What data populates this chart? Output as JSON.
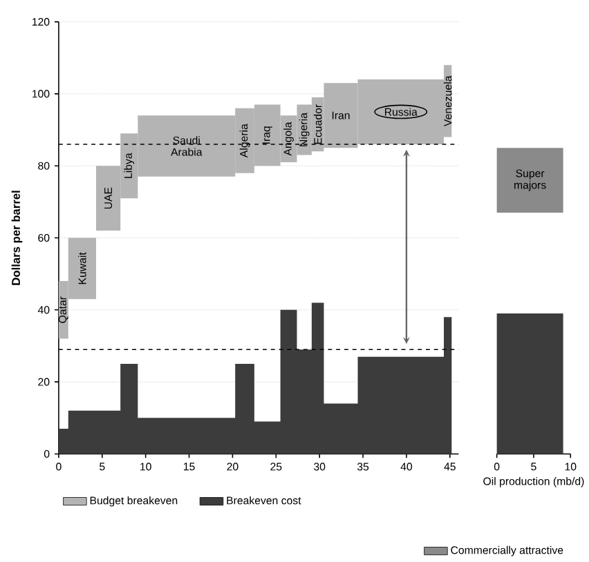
{
  "chart_data": [
    {
      "type": "area",
      "ylabel": "Dollars per barrel",
      "xlim": [
        0,
        46
      ],
      "ylim": [
        0,
        120
      ],
      "xticks": [
        0,
        5,
        10,
        15,
        20,
        25,
        30,
        35,
        40,
        45
      ],
      "yticks": [
        0,
        20,
        40,
        60,
        80,
        100,
        120
      ],
      "grid": "y",
      "legend": "bottom",
      "series": [
        {
          "name": "Budget breakeven",
          "type": "bar",
          "color": "#b4b4b4",
          "x": [
            0.55,
            2.7,
            5.7,
            8.1,
            14.7,
            21.4,
            24,
            26.45,
            28.25,
            29.8,
            32.45,
            39.35,
            44.75
          ],
          "base": [
            32,
            43,
            62,
            71,
            77,
            78,
            80,
            81,
            83,
            84,
            85,
            86,
            88
          ],
          "values": [
            16,
            17,
            18,
            18,
            17,
            18,
            17,
            13,
            14,
            15,
            18,
            18,
            20
          ]
        },
        {
          "name": "Breakeven cost",
          "color": "#3c3c3c",
          "x": [
            0,
            1.1,
            1.1,
            4.3,
            4.3,
            7.1,
            7.1,
            9.1,
            9.1,
            20.3,
            20.3,
            22.5,
            22.5,
            25.5,
            25.5,
            27.4,
            27.4,
            29.1,
            29.1,
            30.5,
            30.5,
            34.4,
            34.4,
            44.3,
            44.3,
            45.2
          ],
          "values": [
            7,
            7,
            12,
            12,
            12,
            12,
            25,
            25,
            10,
            10,
            25,
            25,
            9,
            9,
            40,
            40,
            29,
            29,
            42,
            42,
            14,
            14,
            27,
            27,
            38,
            38
          ]
        }
      ],
      "ref_lines": [
        {
          "axis": "y",
          "value": 86,
          "line_style": "dashed"
        },
        {
          "axis": "y",
          "value": 29,
          "line_style": "dashed"
        }
      ],
      "annotations": [
        "Qatar",
        "Kuwait",
        "UAE",
        "Libya",
        "Saudi Arabia",
        "Algeria",
        "Iraq",
        "Angola",
        "Nigeria",
        "Ecuador",
        "Iran",
        "Russia",
        "Venezuela"
      ]
    },
    {
      "type": "area",
      "xlabel": "Oil production (mb/d)",
      "xlim": [
        0,
        10
      ],
      "ylim": [
        0,
        120
      ],
      "xticks": [
        0,
        5,
        10
      ],
      "yticks": [
        0,
        20,
        40,
        60,
        80,
        100,
        120
      ],
      "grid": "y",
      "tick_labels": "x",
      "legend": "bottom",
      "series": [
        {
          "name": "Commercially attractive",
          "type": "bar",
          "color": "#8a8a8a",
          "x": [
            4.5
          ],
          "base": [
            67
          ],
          "values": [
            18
          ]
        },
        {
          "color": "#3c3c3c",
          "x": [
            0,
            9
          ],
          "values": [
            39,
            39
          ]
        }
      ],
      "annotations": [
        "Super majors"
      ]
    }
  ]
}
